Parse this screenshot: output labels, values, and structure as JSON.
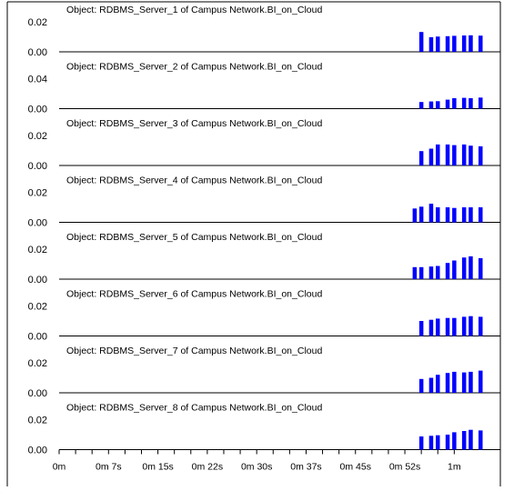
{
  "chart_data": {
    "type": "bar",
    "x_tick_labels": [
      "0m",
      "0m 7s",
      "0m 15s",
      "0m 22s",
      "0m 30s",
      "0m 37s",
      "0m 45s",
      "0m 52s",
      "1m"
    ],
    "x_unit": "seconds",
    "xlim": [
      0,
      67
    ],
    "bar_color": "#0000ff",
    "grid": false,
    "panels": [
      {
        "title": "Object: RDBMS_Server_1 of Campus Network.BI_on_Cloud",
        "y_tick_labels": [
          "0.02",
          "0.00"
        ],
        "ylim": [
          0,
          0.025
        ],
        "x": [
          55,
          56.5,
          57.5,
          59,
          60,
          61.5,
          62.5,
          64
        ],
        "values": [
          0.0165,
          0.0122,
          0.0127,
          0.013,
          0.0133,
          0.0136,
          0.0138,
          0.0135
        ]
      },
      {
        "title": "Object: RDBMS_Server_2 of Campus Network.BI_on_Cloud",
        "y_tick_labels": [
          "0.04",
          "0.00"
        ],
        "ylim": [
          0,
          0.05
        ],
        "x": [
          55,
          56.5,
          57.5,
          59,
          60,
          61.5,
          62.5,
          64
        ],
        "values": [
          0.011,
          0.012,
          0.0125,
          0.015,
          0.0175,
          0.018,
          0.0175,
          0.0185
        ]
      },
      {
        "title": "Object: RDBMS_Server_3 of Campus Network.BI_on_Cloud",
        "y_tick_labels": [
          "0.02",
          "0.00"
        ],
        "ylim": [
          0,
          0.025
        ],
        "x": [
          55,
          56.5,
          57.5,
          59,
          60,
          61.5,
          62.5,
          64
        ],
        "values": [
          0.012,
          0.014,
          0.0175,
          0.0175,
          0.017,
          0.0175,
          0.0165,
          0.016
        ]
      },
      {
        "title": "Object: RDBMS_Server_4 of Campus Network.BI_on_Cloud",
        "y_tick_labels": [
          "0.02",
          "0.00"
        ],
        "ylim": [
          0,
          0.025
        ],
        "x": [
          54,
          55,
          56.5,
          57.5,
          59,
          60,
          61.5,
          62.5,
          64
        ],
        "values": [
          0.0115,
          0.013,
          0.0155,
          0.0125,
          0.0125,
          0.012,
          0.0125,
          0.0125,
          0.0125
        ]
      },
      {
        "title": "Object: RDBMS_Server_5 of Campus Network.BI_on_Cloud",
        "y_tick_labels": [
          "0.02",
          "0.00"
        ],
        "ylim": [
          0,
          0.025
        ],
        "x": [
          54,
          55,
          56.5,
          57.5,
          59,
          60,
          61.5,
          62.5,
          64
        ],
        "values": [
          0.01,
          0.01,
          0.0105,
          0.011,
          0.0135,
          0.0155,
          0.018,
          0.019,
          0.0175
        ]
      },
      {
        "title": "Object: RDBMS_Server_6 of Campus Network.BI_on_Cloud",
        "y_tick_labels": [
          "0.02",
          "0.00"
        ],
        "ylim": [
          0,
          0.025
        ],
        "x": [
          55,
          56.5,
          57.5,
          59,
          60,
          61.5,
          62.5,
          64
        ],
        "values": [
          0.0125,
          0.0135,
          0.0145,
          0.015,
          0.015,
          0.016,
          0.0165,
          0.016
        ]
      },
      {
        "title": "Object: RDBMS_Server_7 of Campus Network.BI_on_Cloud",
        "y_tick_labels": [
          "0.02",
          "0.00"
        ],
        "ylim": [
          0,
          0.025
        ],
        "x": [
          55,
          56.5,
          57.5,
          59,
          60,
          61.5,
          62.5,
          64
        ],
        "values": [
          0.0115,
          0.0125,
          0.015,
          0.0165,
          0.0175,
          0.017,
          0.0175,
          0.0185
        ]
      },
      {
        "title": "Object: RDBMS_Server_8 of Campus Network.BI_on_Cloud",
        "y_tick_labels": [
          "0.02",
          "0.00"
        ],
        "ylim": [
          0,
          0.025
        ],
        "x": [
          55,
          56.5,
          57.5,
          59,
          60,
          61.5,
          62.5,
          64
        ],
        "values": [
          0.011,
          0.0115,
          0.012,
          0.0125,
          0.0145,
          0.0155,
          0.0165,
          0.016
        ]
      }
    ]
  }
}
